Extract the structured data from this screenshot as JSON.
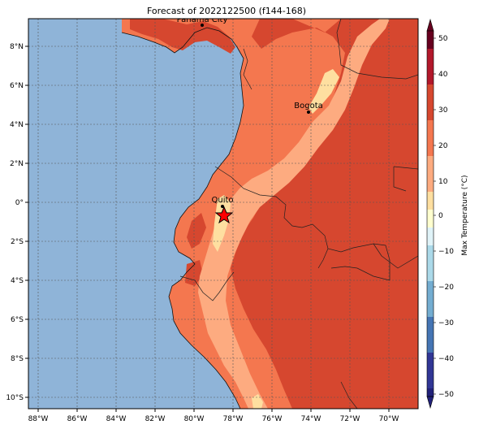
{
  "title": "Forecast of 2022122500 (f144-168)",
  "map": {
    "lon_labels": [
      "88°W",
      "86°W",
      "84°W",
      "82°W",
      "80°W",
      "78°W",
      "76°W",
      "74°W",
      "72°W",
      "70°W"
    ],
    "lat_labels": [
      "8°N",
      "6°N",
      "4°N",
      "2°N",
      "0°",
      "2°S",
      "4°S",
      "6°S",
      "8°S",
      "10°S"
    ],
    "cities": [
      {
        "name": "Panama City"
      },
      {
        "name": "Bogota"
      },
      {
        "name": "Quito"
      }
    ],
    "marker": "star-marker",
    "ocean_color": "#8fb4d8"
  },
  "colorbar": {
    "label": "Max Temperature (°C)",
    "tick_labels": [
      "50",
      "40",
      "30",
      "20",
      "10",
      "0",
      "−10",
      "−20",
      "−30",
      "−40",
      "−50"
    ],
    "colors": [
      "#67001f",
      "#b2182b",
      "#d6472f",
      "#f4774f",
      "#fdab80",
      "#fedfa0",
      "#ffffcf",
      "#e0f3f8",
      "#abd9e9",
      "#74add1",
      "#4575b4",
      "#313695",
      "#22227a"
    ]
  }
}
